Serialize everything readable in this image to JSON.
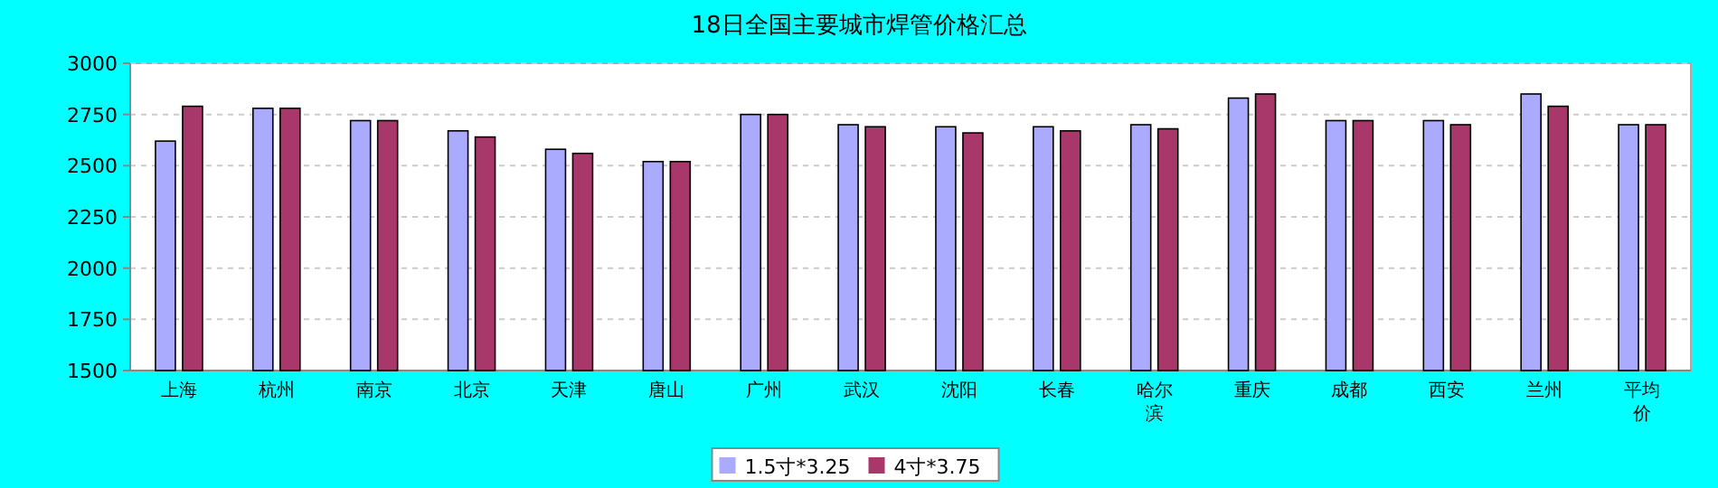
{
  "chart_data": {
    "type": "bar",
    "title": "18日全国主要城市焊管价格汇总",
    "categories": [
      "上海",
      "杭州",
      "南京",
      "北京",
      "天津",
      "唐山",
      "广州",
      "武汉",
      "沈阳",
      "长春",
      "哈尔滨",
      "重庆",
      "成都",
      "西安",
      "兰州",
      "平均价"
    ],
    "series": [
      {
        "name": "1.5寸*3.25",
        "color": "#aaaaff",
        "values": [
          2620,
          2780,
          2720,
          2670,
          2580,
          2520,
          2750,
          2700,
          2690,
          2690,
          2700,
          2830,
          2720,
          2720,
          2850,
          2700
        ]
      },
      {
        "name": "4寸*3.75",
        "color": "#a8376a",
        "values": [
          2790,
          2780,
          2720,
          2640,
          2560,
          2520,
          2750,
          2690,
          2660,
          2670,
          2680,
          2850,
          2720,
          2700,
          2790,
          2700
        ]
      }
    ],
    "ylim": [
      1500,
      3000
    ],
    "yticks": [
      1500,
      1750,
      2000,
      2250,
      2500,
      2750,
      3000
    ],
    "grid": "y",
    "legend": "bottom"
  }
}
